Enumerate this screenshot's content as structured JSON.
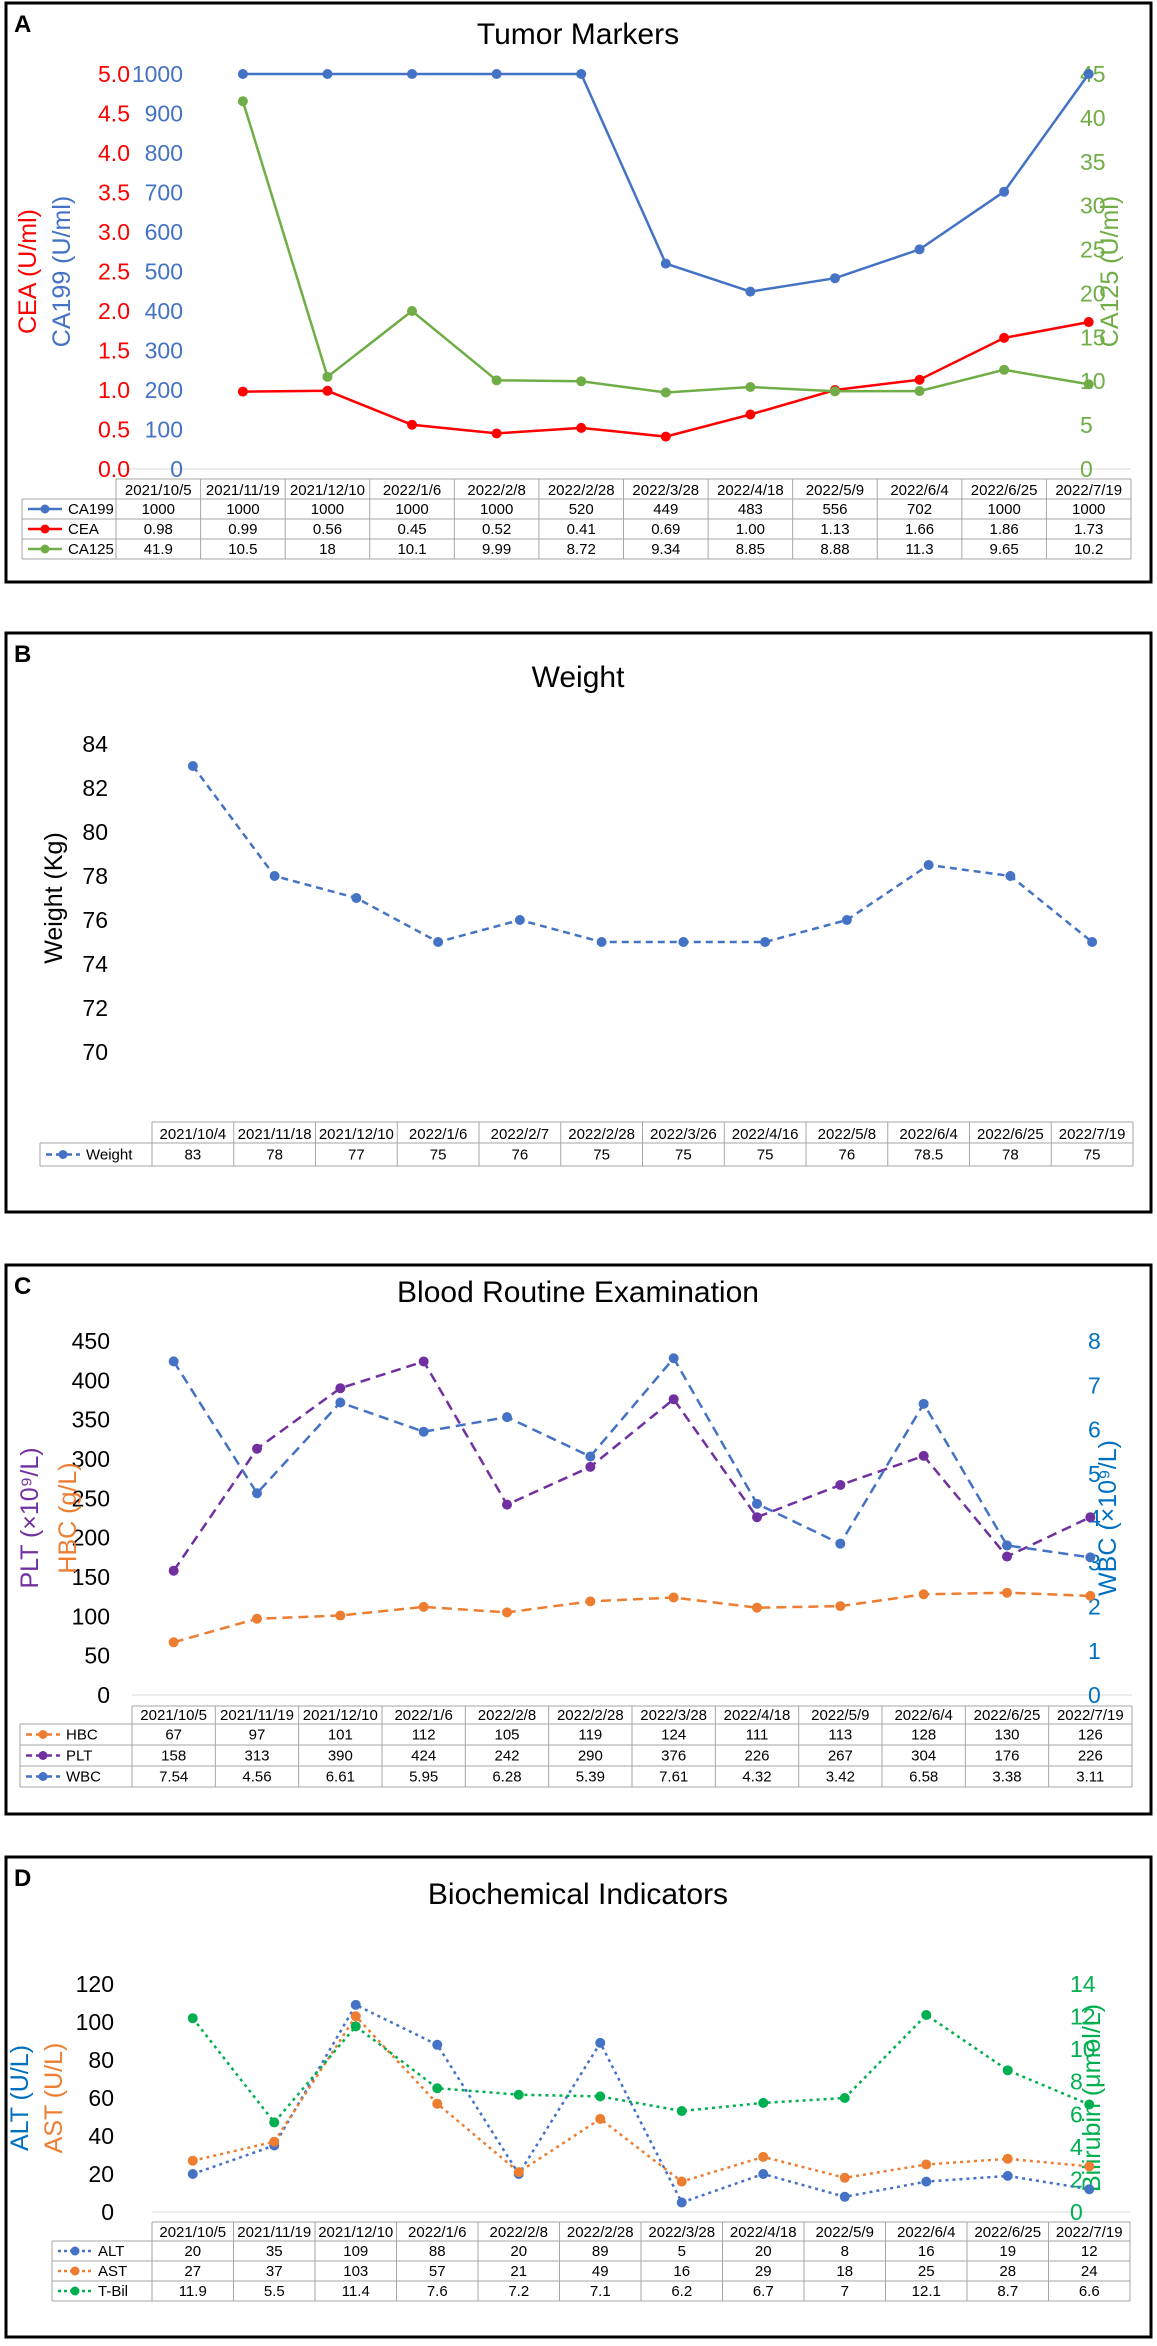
{
  "colors": {
    "blue": "#4472C4",
    "red": "#FF0000",
    "green": "#70AD47",
    "orange": "#ED7D31",
    "purple": "#7030A0",
    "bright_blue": "#0070C0",
    "bright_green": "#00B050"
  },
  "chart_data": [
    {
      "id": "A",
      "panel_label": "A",
      "type": "line",
      "title": "Tumor Markers",
      "categories": [
        "2021/10/5",
        "2021/11/19",
        "2021/12/10",
        "2022/1/6",
        "2022/2/8",
        "2022/2/28",
        "2022/3/28",
        "2022/4/18",
        "2022/5/9",
        "2022/6/4",
        "2022/6/25",
        "2022/7/19"
      ],
      "plot_categories": [
        "2021/11/19",
        "2021/12/10",
        "2022/1/6",
        "2022/2/8",
        "2022/2/28",
        "2022/3/28",
        "2022/4/18",
        "2022/5/9",
        "2022/6/4",
        "2022/6/25",
        "2022/7/19"
      ],
      "axes": {
        "y1": {
          "min": 0,
          "max": 5.0,
          "step": 0.5,
          "decimals": 1,
          "label": "CEA (U/ml)",
          "color": "#FF0000",
          "ticks": [
            "0.0",
            "0.5",
            "1.0",
            "1.5",
            "2.0",
            "2.5",
            "3.0",
            "3.5",
            "4.0",
            "4.5",
            "5.0"
          ]
        },
        "y2": {
          "min": 0,
          "max": 1000,
          "step": 100,
          "label": "CA199 (U/ml)",
          "color": "#4472C4",
          "ticks": [
            "0",
            "100",
            "200",
            "300",
            "400",
            "500",
            "600",
            "700",
            "800",
            "900",
            "1000"
          ]
        },
        "y3": {
          "min": 0,
          "max": 45,
          "step": 5,
          "label": "CA125 (U/ml)",
          "color": "#70AD47",
          "ticks": [
            "0",
            "5",
            "10",
            "15",
            "20",
            "25",
            "30",
            "35",
            "40",
            "45"
          ]
        }
      },
      "series": [
        {
          "name": "CA199",
          "axis": "y2",
          "color": "#4472C4",
          "dash": "none",
          "values": [
            1000,
            1000,
            1000,
            1000,
            1000,
            520,
            449,
            483,
            556,
            702,
            1000,
            1000
          ],
          "labels": [
            "1000",
            "1000",
            "1000",
            "1000",
            "1000",
            "520",
            "449",
            "483",
            "556",
            "702",
            "1000",
            "1000"
          ]
        },
        {
          "name": "CEA",
          "axis": "y1",
          "color": "#FF0000",
          "dash": "none",
          "values": [
            0.98,
            0.99,
            0.56,
            0.45,
            0.52,
            0.41,
            0.69,
            1.0,
            1.13,
            1.66,
            1.86,
            1.73
          ],
          "labels": [
            "0.98",
            "0.99",
            "0.56",
            "0.45",
            "0.52",
            "0.41",
            "0.69",
            "1.00",
            "1.13",
            "1.66",
            "1.86",
            "1.73"
          ]
        },
        {
          "name": "CA125",
          "axis": "y3",
          "color": "#70AD47",
          "dash": "none",
          "values": [
            41.9,
            10.5,
            18,
            10.1,
            9.99,
            8.72,
            9.34,
            8.85,
            8.88,
            11.3,
            9.65,
            10.2
          ],
          "labels": [
            "41.9",
            "10.5",
            "18",
            "10.1",
            "9.99",
            "8.72",
            "9.34",
            "8.85",
            "8.88",
            "11.3",
            "9.65",
            "10.2"
          ]
        }
      ]
    },
    {
      "id": "B",
      "panel_label": "B",
      "type": "line",
      "title": "Weight",
      "categories": [
        "2021/10/4",
        "2021/11/18",
        "2021/12/10",
        "2022/1/6",
        "2022/2/7",
        "2022/2/28",
        "2022/3/26",
        "2022/4/16",
        "2022/5/8",
        "2022/6/4",
        "2022/6/25",
        "2022/7/19"
      ],
      "plot_categories": [
        "2021/10/4",
        "2021/11/18",
        "2021/12/10",
        "2022/1/6",
        "2022/2/7",
        "2022/2/28",
        "2022/3/26",
        "2022/4/16",
        "2022/5/8",
        "2022/6/4",
        "2022/6/25",
        "2022/7/19"
      ],
      "axes": {
        "y1": {
          "min": 70,
          "max": 84,
          "step": 2,
          "label": "Weight (Kg)",
          "color": "#000000",
          "ticks": [
            "70",
            "72",
            "74",
            "76",
            "78",
            "80",
            "82",
            "84"
          ]
        }
      },
      "series": [
        {
          "name": "Weight",
          "axis": "y1",
          "color": "#4472C4",
          "dash": "7,5",
          "values": [
            83,
            78,
            77,
            75,
            76,
            75,
            75,
            75,
            76,
            78.5,
            78,
            75
          ],
          "labels": [
            "83",
            "78",
            "77",
            "75",
            "76",
            "75",
            "75",
            "75",
            "76",
            "78.5",
            "78",
            "75"
          ]
        }
      ]
    },
    {
      "id": "C",
      "panel_label": "C",
      "type": "line",
      "title": "Blood Routine Examination",
      "categories": [
        "2021/10/5",
        "2021/11/19",
        "2021/12/10",
        "2022/1/6",
        "2022/2/8",
        "2022/2/28",
        "2022/3/28",
        "2022/4/18",
        "2022/5/9",
        "2022/6/4",
        "2022/6/25",
        "2022/7/19"
      ],
      "plot_categories": [
        "2021/10/5",
        "2021/11/19",
        "2021/12/10",
        "2022/1/6",
        "2022/2/8",
        "2022/2/28",
        "2022/3/28",
        "2022/4/18",
        "2022/5/9",
        "2022/6/4",
        "2022/6/25",
        "2022/7/19"
      ],
      "axes": {
        "y1": {
          "min": 0,
          "max": 450,
          "step": 50,
          "label_top": "PLT (×10⁹/L)",
          "label_top_color": "#7030A0",
          "label": "HBC (g/L)",
          "color": "#ED7D31",
          "tick_color": "#000000",
          "ticks": [
            "0",
            "50",
            "100",
            "150",
            "200",
            "250",
            "300",
            "350",
            "400",
            "450"
          ]
        },
        "y2r": {
          "min": 0,
          "max": 8,
          "step": 1,
          "label": "WBC (×10⁹/L)",
          "color": "#0070C0",
          "ticks": [
            "0",
            "1",
            "2",
            "3",
            "4",
            "5",
            "6",
            "7",
            "8"
          ]
        }
      },
      "series": [
        {
          "name": "HBC",
          "axis": "y1",
          "color": "#ED7D31",
          "dash": "10,6",
          "values": [
            67,
            97,
            101,
            112,
            105,
            119,
            124,
            111,
            113,
            128,
            130,
            126
          ],
          "labels": [
            "67",
            "97",
            "101",
            "112",
            "105",
            "119",
            "124",
            "111",
            "113",
            "128",
            "130",
            "126"
          ]
        },
        {
          "name": "PLT",
          "axis": "y1",
          "color": "#7030A0",
          "dash": "10,6",
          "values": [
            158,
            313,
            390,
            424,
            242,
            290,
            376,
            226,
            267,
            304,
            176,
            226
          ],
          "labels": [
            "158",
            "313",
            "390",
            "424",
            "242",
            "290",
            "376",
            "226",
            "267",
            "304",
            "176",
            "226"
          ]
        },
        {
          "name": "WBC",
          "axis": "y2r",
          "color": "#4472C4",
          "dash": "10,6",
          "values": [
            7.54,
            4.56,
            6.61,
            5.95,
            6.28,
            5.39,
            7.61,
            4.32,
            3.42,
            6.58,
            3.38,
            3.11
          ],
          "labels": [
            "7.54",
            "4.56",
            "6.61",
            "5.95",
            "6.28",
            "5.39",
            "7.61",
            "4.32",
            "3.42",
            "6.58",
            "3.38",
            "3.11"
          ]
        }
      ]
    },
    {
      "id": "D",
      "panel_label": "D",
      "type": "line",
      "title": "Biochemical Indicators",
      "categories": [
        "2021/10/5",
        "2021/11/19",
        "2021/12/10",
        "2022/1/6",
        "2022/2/8",
        "2022/2/28",
        "2022/3/28",
        "2022/4/18",
        "2022/5/9",
        "2022/6/4",
        "2022/6/25",
        "2022/7/19"
      ],
      "plot_categories": [
        "2021/10/5",
        "2021/11/19",
        "2021/12/10",
        "2022/1/6",
        "2022/2/8",
        "2022/2/28",
        "2022/3/28",
        "2022/4/18",
        "2022/5/9",
        "2022/6/4",
        "2022/6/25",
        "2022/7/19"
      ],
      "axes": {
        "y1": {
          "min": 0,
          "max": 120,
          "step": 20,
          "label_top": "ALT (U/L)",
          "label_top_color": "#0070C0",
          "label": "AST (U/L)",
          "color": "#ED7D31",
          "tick_color": "#000000",
          "ticks": [
            "0",
            "20",
            "40",
            "60",
            "80",
            "100",
            "120"
          ]
        },
        "y2r": {
          "min": 0,
          "max": 14,
          "step": 2,
          "label": "Bilirubin (μmol/L)",
          "color": "#00B050",
          "ticks": [
            "0",
            "2",
            "4",
            "6",
            "8",
            "10",
            "12",
            "14"
          ]
        }
      },
      "series": [
        {
          "name": "ALT",
          "axis": "y1",
          "color": "#4472C4",
          "dash": "3,4",
          "values": [
            20,
            35,
            109,
            88,
            20,
            89,
            5,
            20,
            8,
            16,
            19,
            12
          ],
          "labels": [
            "20",
            "35",
            "109",
            "88",
            "20",
            "89",
            "5",
            "20",
            "8",
            "16",
            "19",
            "12"
          ]
        },
        {
          "name": "AST",
          "axis": "y1",
          "color": "#ED7D31",
          "dash": "3,4",
          "values": [
            27,
            37,
            103,
            57,
            21,
            49,
            16,
            29,
            18,
            25,
            28,
            24
          ],
          "labels": [
            "27",
            "37",
            "103",
            "57",
            "21",
            "49",
            "16",
            "29",
            "18",
            "25",
            "28",
            "24"
          ]
        },
        {
          "name": "T-Bil",
          "axis": "y2r",
          "color": "#00B050",
          "dash": "3,4",
          "values": [
            11.9,
            5.5,
            11.4,
            7.6,
            7.2,
            7.1,
            6.2,
            6.7,
            7,
            12.1,
            8.7,
            6.6
          ],
          "labels": [
            "11.9",
            "5.5",
            "11.4",
            "7.6",
            "7.2",
            "7.1",
            "6.2",
            "6.7",
            "7",
            "12.1",
            "8.7",
            "6.6"
          ]
        }
      ]
    }
  ]
}
